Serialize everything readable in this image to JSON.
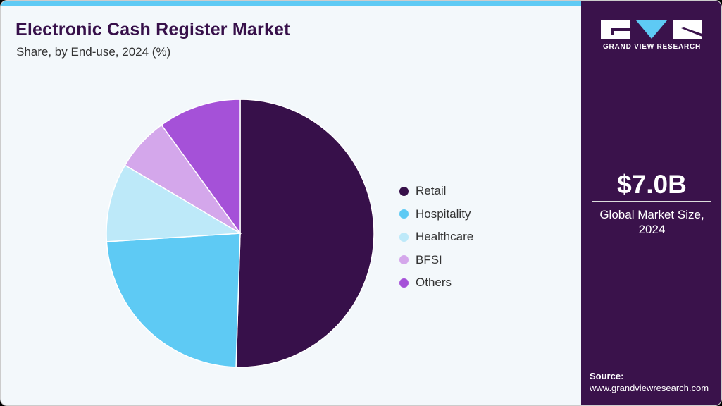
{
  "header": {
    "title": "Electronic Cash Register Market",
    "subtitle": "Share, by End-use, 2024 (%)"
  },
  "sidebar": {
    "brand": "GRAND VIEW RESEARCH",
    "market_value": "$7.0B",
    "market_caption_line1": "Global Market Size,",
    "market_caption_line2": "2024",
    "source_label": "Source:",
    "source_url": "www.grandviewresearch.com"
  },
  "colors": {
    "accent": "#5ecaf4",
    "sidebar_bg": "#3a124b",
    "title": "#37104a"
  },
  "legend": [
    {
      "label": "Retail",
      "color": "#37104a"
    },
    {
      "label": "Hospitality",
      "color": "#5ecaf4"
    },
    {
      "label": "Healthcare",
      "color": "#bde9f9"
    },
    {
      "label": "BFSI",
      "color": "#d4a7eb"
    },
    {
      "label": "Others",
      "color": "#a551d8"
    }
  ],
  "chart_data": {
    "type": "pie",
    "title": "Electronic Cash Register Market",
    "subtitle": "Share, by End-use, 2024 (%)",
    "categories": [
      "Retail",
      "Hospitality",
      "Healthcare",
      "BFSI",
      "Others"
    ],
    "values": [
      50.5,
      23.5,
      9.5,
      6.5,
      10.0
    ],
    "colors": [
      "#37104a",
      "#5ecaf4",
      "#bde9f9",
      "#d4a7eb",
      "#a551d8"
    ],
    "start_angle_deg": 0,
    "direction": "clockwise",
    "legend_position": "right",
    "unit": "%"
  }
}
